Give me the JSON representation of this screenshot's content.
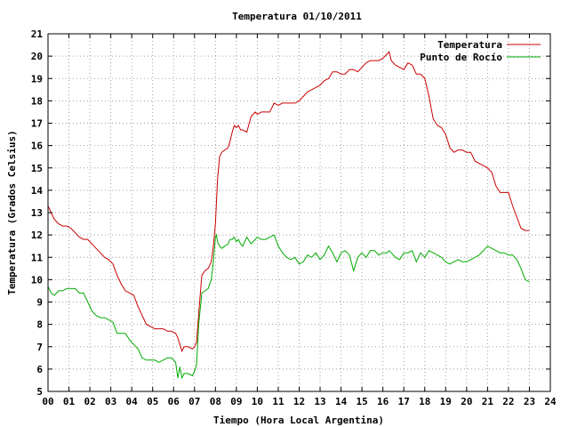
{
  "chart_data": {
    "type": "line",
    "title": "Temperatura 01/10/2011",
    "xlabel": "Tiempo (Hora Local Argentina)",
    "ylabel": "Temperatura (Grados Celsius)",
    "xlim": [
      0,
      24
    ],
    "ylim": [
      5,
      21
    ],
    "x_ticks": [
      "00",
      "01",
      "02",
      "03",
      "04",
      "05",
      "06",
      "07",
      "08",
      "09",
      "10",
      "11",
      "12",
      "13",
      "14",
      "15",
      "16",
      "17",
      "18",
      "19",
      "20",
      "21",
      "22",
      "23",
      "24"
    ],
    "y_ticks": [
      5,
      6,
      7,
      8,
      9,
      10,
      11,
      12,
      13,
      14,
      15,
      16,
      17,
      18,
      19,
      20,
      21
    ],
    "grid": true,
    "legend_position": "top-right",
    "series": [
      {
        "name": "Temperatura",
        "color": "#cc0000",
        "x": [
          0.0,
          0.15,
          0.3,
          0.5,
          0.7,
          0.9,
          1.1,
          1.3,
          1.5,
          1.7,
          1.9,
          2.1,
          2.3,
          2.5,
          2.7,
          2.9,
          3.1,
          3.3,
          3.5,
          3.7,
          3.9,
          4.1,
          4.3,
          4.5,
          4.7,
          4.9,
          5.1,
          5.3,
          5.5,
          5.7,
          5.9,
          6.1,
          6.2,
          6.3,
          6.4,
          6.5,
          6.7,
          6.9,
          7.0,
          7.1,
          7.2,
          7.35,
          7.5,
          7.65,
          7.8,
          7.9,
          8.0,
          8.05,
          8.1,
          8.2,
          8.3,
          8.45,
          8.6,
          8.7,
          8.8,
          8.9,
          9.0,
          9.1,
          9.2,
          9.3,
          9.5,
          9.7,
          9.9,
          10.0,
          10.2,
          10.4,
          10.6,
          10.8,
          11.0,
          11.2,
          11.4,
          11.6,
          11.8,
          12.0,
          12.2,
          12.4,
          12.6,
          12.8,
          13.0,
          13.2,
          13.4,
          13.6,
          13.8,
          14.0,
          14.2,
          14.4,
          14.6,
          14.8,
          15.0,
          15.2,
          15.4,
          15.6,
          15.8,
          16.0,
          16.2,
          16.3,
          16.4,
          16.6,
          16.8,
          17.0,
          17.2,
          17.4,
          17.6,
          17.8,
          18.0,
          18.2,
          18.4,
          18.6,
          18.8,
          19.0,
          19.2,
          19.4,
          19.6,
          19.8,
          20.0,
          20.2,
          20.4,
          20.6,
          20.8,
          21.0,
          21.2,
          21.4,
          21.6,
          21.8,
          22.0,
          22.2,
          22.4,
          22.6,
          22.8,
          23.0
        ],
        "values": [
          13.3,
          13.0,
          12.7,
          12.5,
          12.4,
          12.4,
          12.3,
          12.1,
          11.9,
          11.8,
          11.8,
          11.6,
          11.4,
          11.2,
          11.0,
          10.9,
          10.7,
          10.2,
          9.8,
          9.5,
          9.4,
          9.3,
          8.8,
          8.4,
          8.0,
          7.9,
          7.8,
          7.8,
          7.8,
          7.7,
          7.7,
          7.6,
          7.4,
          7.1,
          6.8,
          7.0,
          7.0,
          6.9,
          7.0,
          7.2,
          8.5,
          10.2,
          10.4,
          10.5,
          10.8,
          11.5,
          12.5,
          13.5,
          14.5,
          15.5,
          15.7,
          15.8,
          15.9,
          16.2,
          16.6,
          16.9,
          16.8,
          16.9,
          16.7,
          16.7,
          16.6,
          17.3,
          17.5,
          17.4,
          17.5,
          17.5,
          17.5,
          17.9,
          17.8,
          17.9,
          17.9,
          17.9,
          17.9,
          18.0,
          18.2,
          18.4,
          18.5,
          18.6,
          18.7,
          18.9,
          19.0,
          19.3,
          19.3,
          19.2,
          19.2,
          19.4,
          19.4,
          19.3,
          19.5,
          19.7,
          19.8,
          19.8,
          19.8,
          19.9,
          20.1,
          20.2,
          19.8,
          19.6,
          19.5,
          19.4,
          19.7,
          19.6,
          19.2,
          19.2,
          19.0,
          18.2,
          17.2,
          16.9,
          16.8,
          16.5,
          15.9,
          15.7,
          15.8,
          15.8,
          15.7,
          15.7,
          15.3,
          15.2,
          15.1,
          15.0,
          14.8,
          14.2,
          13.9,
          13.9,
          13.9,
          13.3,
          12.8,
          12.3,
          12.2,
          12.2
        ]
      },
      {
        "name": "Punto de Rocío",
        "color": "#00aa00",
        "x": [
          0.0,
          0.15,
          0.3,
          0.5,
          0.7,
          0.9,
          1.1,
          1.3,
          1.5,
          1.7,
          1.9,
          2.1,
          2.3,
          2.5,
          2.7,
          2.9,
          3.1,
          3.3,
          3.5,
          3.7,
          3.9,
          4.1,
          4.3,
          4.5,
          4.7,
          4.9,
          5.1,
          5.3,
          5.5,
          5.7,
          5.9,
          6.1,
          6.2,
          6.3,
          6.4,
          6.5,
          6.7,
          6.9,
          7.0,
          7.1,
          7.2,
          7.35,
          7.5,
          7.65,
          7.8,
          7.9,
          8.0,
          8.05,
          8.1,
          8.2,
          8.3,
          8.45,
          8.6,
          8.7,
          8.8,
          8.9,
          9.0,
          9.1,
          9.2,
          9.3,
          9.5,
          9.7,
          9.9,
          10.0,
          10.2,
          10.4,
          10.6,
          10.8,
          11.0,
          11.2,
          11.4,
          11.6,
          11.8,
          12.0,
          12.2,
          12.4,
          12.6,
          12.8,
          13.0,
          13.2,
          13.4,
          13.6,
          13.8,
          14.0,
          14.2,
          14.4,
          14.6,
          14.8,
          15.0,
          15.2,
          15.4,
          15.6,
          15.8,
          16.0,
          16.2,
          16.3,
          16.4,
          16.6,
          16.8,
          17.0,
          17.2,
          17.4,
          17.6,
          17.8,
          18.0,
          18.2,
          18.4,
          18.6,
          18.8,
          19.0,
          19.2,
          19.4,
          19.6,
          19.8,
          20.0,
          20.2,
          20.4,
          20.6,
          20.8,
          21.0,
          21.2,
          21.4,
          21.6,
          21.8,
          22.0,
          22.2,
          22.4,
          22.6,
          22.8,
          23.0
        ],
        "values": [
          9.7,
          9.4,
          9.3,
          9.5,
          9.5,
          9.6,
          9.6,
          9.6,
          9.4,
          9.4,
          9.0,
          8.6,
          8.4,
          8.3,
          8.3,
          8.2,
          8.1,
          7.6,
          7.6,
          7.6,
          7.3,
          7.1,
          6.9,
          6.5,
          6.4,
          6.4,
          6.4,
          6.3,
          6.4,
          6.5,
          6.5,
          6.3,
          5.6,
          6.1,
          5.6,
          5.8,
          5.8,
          5.7,
          5.9,
          6.2,
          8.0,
          9.4,
          9.5,
          9.6,
          10.0,
          10.8,
          11.9,
          12.0,
          11.7,
          11.5,
          11.4,
          11.5,
          11.6,
          11.8,
          11.8,
          11.9,
          11.7,
          11.8,
          11.6,
          11.5,
          11.9,
          11.6,
          11.8,
          11.9,
          11.8,
          11.8,
          11.9,
          12.0,
          11.5,
          11.2,
          11.0,
          10.9,
          11.0,
          10.7,
          10.8,
          11.1,
          11.0,
          11.2,
          10.9,
          11.1,
          11.5,
          11.2,
          10.8,
          11.2,
          11.3,
          11.1,
          10.4,
          11.0,
          11.2,
          11.0,
          11.3,
          11.3,
          11.1,
          11.2,
          11.2,
          11.3,
          11.2,
          11.0,
          10.9,
          11.2,
          11.2,
          11.3,
          10.8,
          11.2,
          11.0,
          11.3,
          11.2,
          11.1,
          11.0,
          10.8,
          10.7,
          10.8,
          10.9,
          10.8,
          10.8,
          10.9,
          11.0,
          11.1,
          11.3,
          11.5,
          11.4,
          11.3,
          11.2,
          11.2,
          11.1,
          11.1,
          10.9,
          10.5,
          10.0,
          9.9
        ]
      }
    ]
  }
}
